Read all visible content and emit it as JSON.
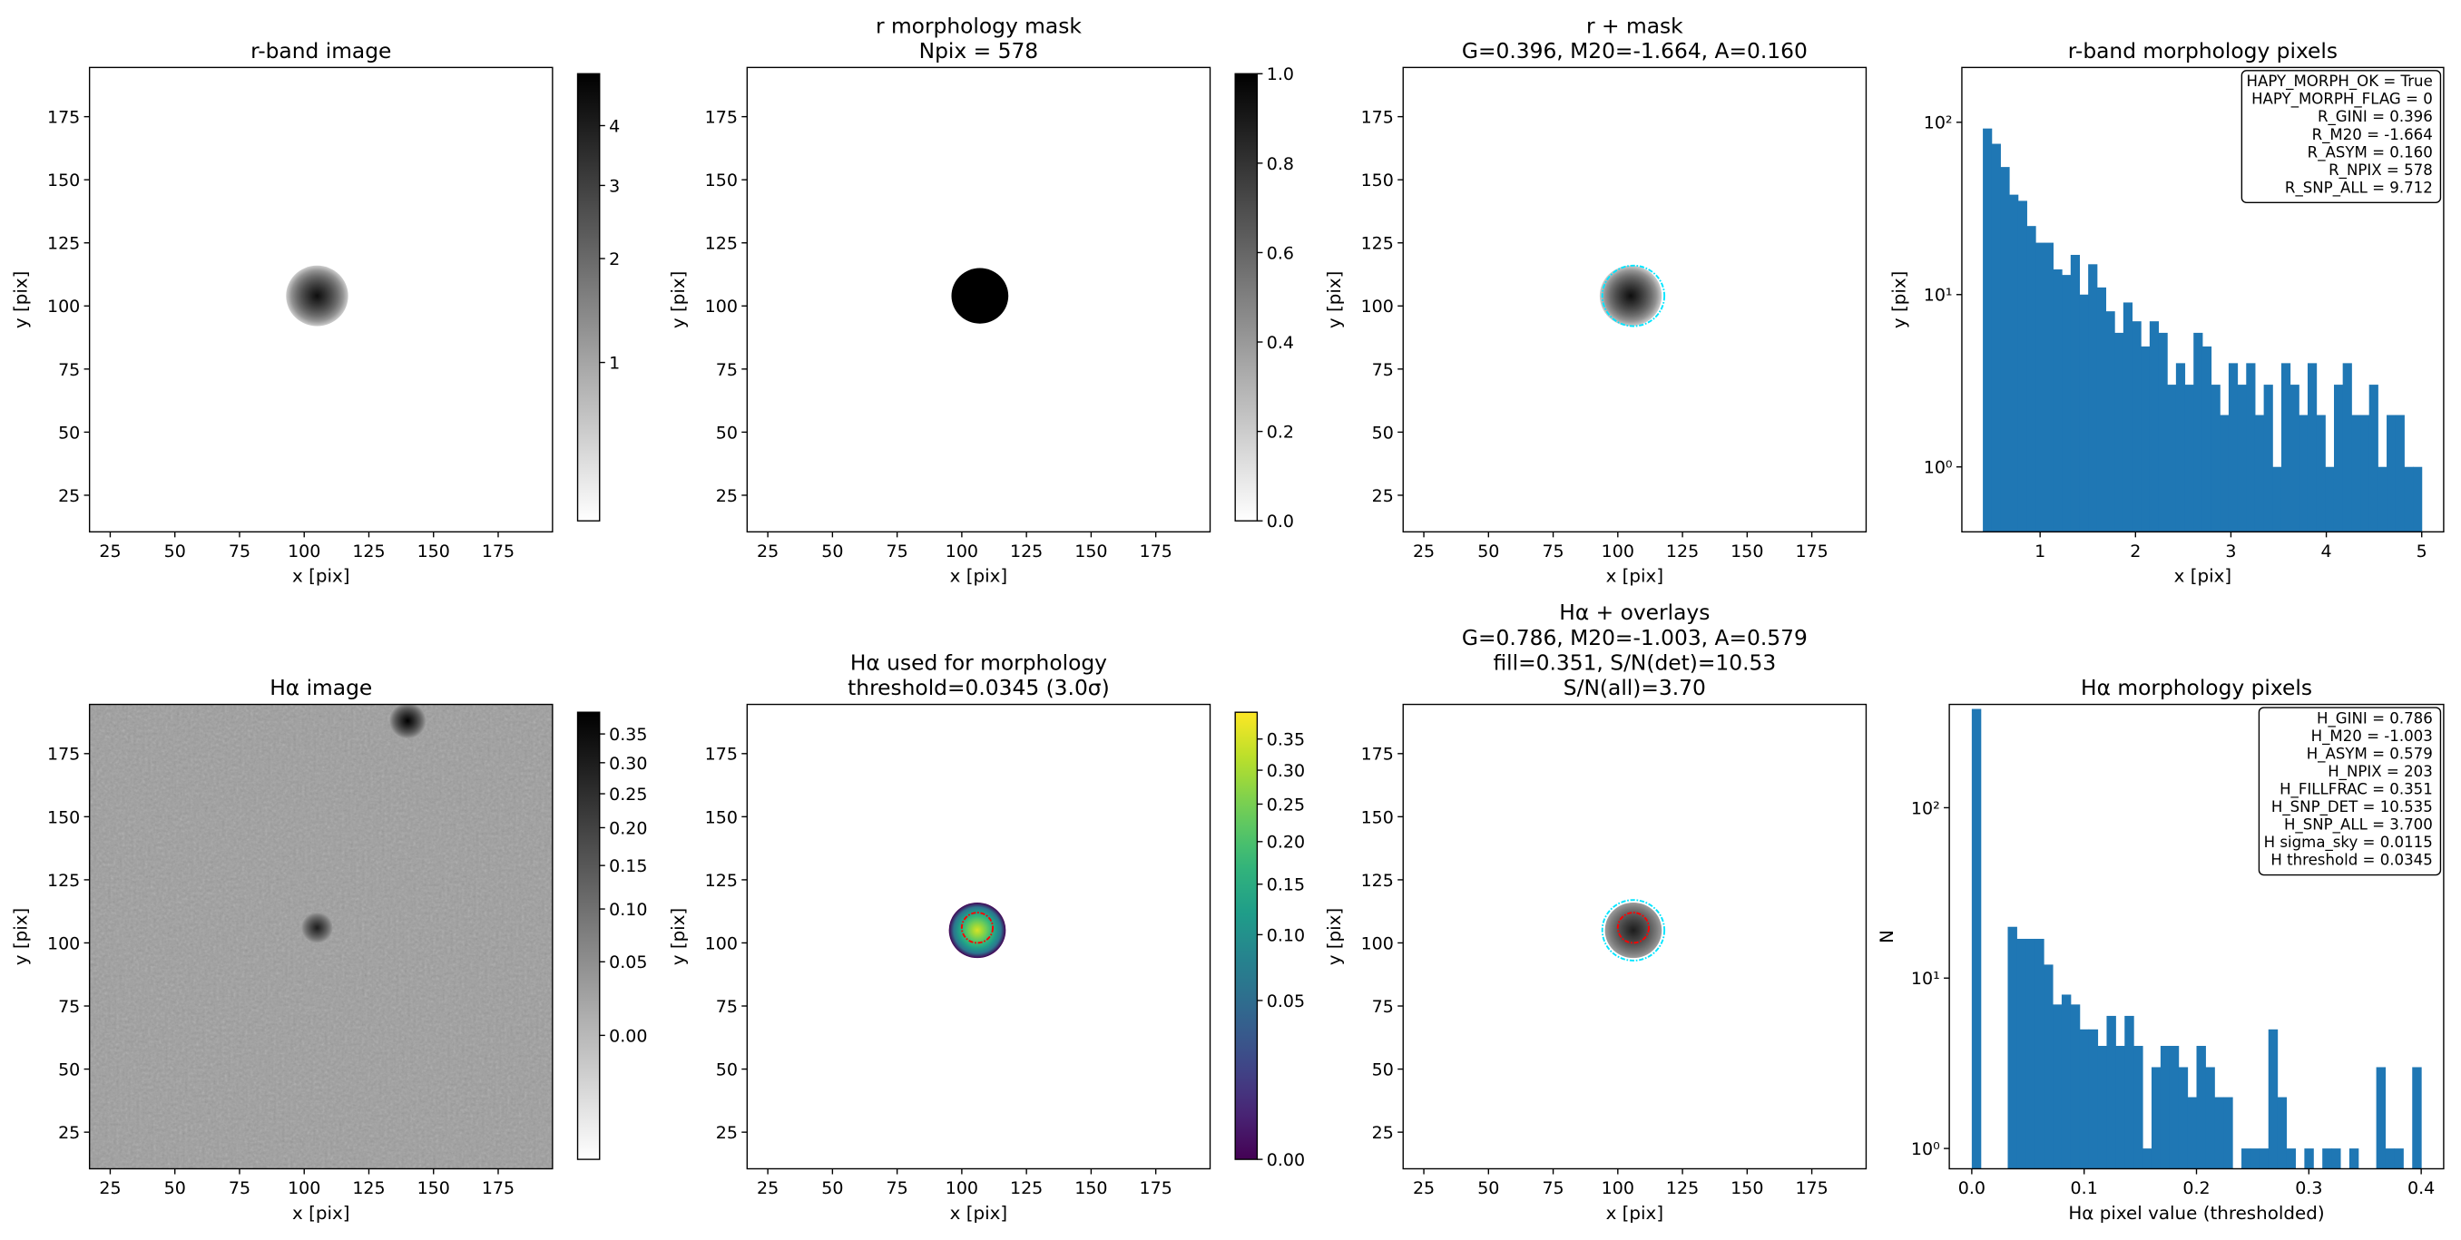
{
  "chart_data": [
    {
      "type": "image",
      "title": [
        "r-band image"
      ],
      "xlabel": "x [pix]",
      "ylabel": "y [pix]",
      "xlim": [
        17,
        196
      ],
      "ylim": [
        10.5,
        194.5
      ],
      "xticks": [
        25,
        50,
        75,
        100,
        125,
        150,
        175
      ],
      "yticks": [
        25,
        50,
        75,
        100,
        125,
        150,
        175
      ],
      "cmap": "gray_r",
      "scale": "sqrt",
      "clim": [
        0.426,
        5.0
      ],
      "colorbar": true,
      "cticks": [
        1,
        2,
        3,
        4
      ],
      "sources": [
        {
          "x": 105,
          "y": 104,
          "r": 12,
          "peak": 4.5,
          "edge": 0.6
        }
      ]
    },
    {
      "type": "image",
      "title": [
        "r morphology mask",
        "Npix = 578"
      ],
      "xlabel": "x [pix]",
      "ylabel": "y [pix]",
      "xlim": [
        17,
        196
      ],
      "ylim": [
        10.5,
        194.5
      ],
      "xticks": [
        25,
        50,
        75,
        100,
        125,
        150,
        175
      ],
      "yticks": [
        25,
        50,
        75,
        100,
        125,
        150,
        175
      ],
      "cmap": "gray_r",
      "scale": "linear",
      "clim": [
        0,
        1
      ],
      "colorbar": true,
      "cticks": [
        {
          "value": 0,
          "label": "0.0"
        },
        {
          "value": 0.2,
          "label": "0.2"
        },
        {
          "value": 0.4,
          "label": "0.4"
        },
        {
          "value": 0.6,
          "label": "0.6"
        },
        {
          "value": 0.8,
          "label": "0.8"
        },
        {
          "value": 1,
          "label": "1.0"
        }
      ],
      "sources": [
        {
          "x": 107,
          "y": 104,
          "r": 11,
          "peak": 1,
          "edge": 1
        }
      ]
    },
    {
      "type": "image",
      "title": [
        "r + mask",
        "G=0.396, M20=-1.664, A=0.160"
      ],
      "xlabel": "x [pix]",
      "ylabel": "y [pix]",
      "xlim": [
        17,
        196
      ],
      "ylim": [
        10.5,
        194.5
      ],
      "xticks": [
        25,
        50,
        75,
        100,
        125,
        150,
        175
      ],
      "yticks": [
        25,
        50,
        75,
        100,
        125,
        150,
        175
      ],
      "cmap": "gray_r",
      "scale": "sqrt",
      "clim": [
        0.426,
        5.0
      ],
      "colorbar": false,
      "sources": [
        {
          "x": 105,
          "y": 104,
          "r": 12,
          "peak": 4.5,
          "edge": 0.6
        }
      ],
      "contours": [
        {
          "color": "#00e5ff",
          "x": 106,
          "y": 104,
          "r": 12
        }
      ]
    },
    {
      "type": "histogram",
      "title": [
        "r-band morphology pixels"
      ],
      "xlabel": "x [pix]",
      "ylabel": "y [pix]",
      "color": "#1f77b4",
      "xlim": [
        0.18,
        5.23
      ],
      "ylim": [
        0.42,
        208
      ],
      "yscale": "log",
      "xticks": [
        1,
        2,
        3,
        4,
        5
      ],
      "yticks": [
        {
          "value": 1,
          "label": "10⁰"
        },
        {
          "value": 10,
          "label": "10¹"
        },
        {
          "value": 100,
          "label": "10²"
        }
      ],
      "bins": [
        0.4,
        0.492,
        0.584,
        0.676,
        0.768,
        0.86,
        0.952,
        1.044,
        1.136,
        1.228,
        1.32,
        1.412,
        1.504,
        1.596,
        1.688,
        1.78,
        1.872,
        1.964,
        2.056,
        2.148,
        2.24,
        2.332,
        2.424,
        2.516,
        2.608,
        2.7,
        2.792,
        2.884,
        2.976,
        3.068,
        3.16,
        3.252,
        3.344,
        3.436,
        3.528,
        3.62,
        3.712,
        3.804,
        3.896,
        3.988,
        4.08,
        4.172,
        4.264,
        4.356,
        4.448,
        4.54,
        4.632,
        4.724,
        4.816,
        4.908,
        5.0
      ],
      "values": [
        92,
        75,
        55,
        38,
        35,
        25,
        20,
        20,
        14,
        13,
        17,
        10,
        15,
        11,
        8,
        6,
        9,
        7,
        5,
        7,
        6,
        3,
        4,
        3,
        6,
        5,
        3,
        2,
        4,
        3,
        4,
        2,
        3,
        1,
        4,
        3,
        2,
        4,
        2,
        1,
        3,
        4,
        2,
        2,
        3,
        1,
        2,
        2,
        1,
        1
      ],
      "annotation": [
        "HAPY_MORPH_OK = True",
        "HAPY_MORPH_FLAG = 0",
        "R_GINI = 0.396",
        "R_M20 = -1.664",
        "R_ASYM = 0.160",
        "R_NPIX = 578",
        "R_SNP_ALL = 9.712"
      ]
    },
    {
      "type": "image",
      "title": [
        "Hα image"
      ],
      "xlabel": "x [pix]",
      "ylabel": "y [pix]",
      "xlim": [
        17,
        196
      ],
      "ylim": [
        10.5,
        194.5
      ],
      "xticks": [
        25,
        50,
        75,
        100,
        125,
        150,
        175
      ],
      "yticks": [
        25,
        50,
        75,
        100,
        125,
        150,
        175
      ],
      "cmap": "gray_r",
      "scale": "sqrt",
      "clim": [
        -0.0325,
        0.39
      ],
      "colorbar": true,
      "background": 0.03,
      "noise": true,
      "cticks": [
        {
          "value": 0,
          "label": "0.00"
        },
        {
          "value": 0.05,
          "label": "0.05"
        },
        {
          "value": 0.1,
          "label": "0.10"
        },
        {
          "value": 0.15,
          "label": "0.15"
        },
        {
          "value": 0.2,
          "label": "0.20"
        },
        {
          "value": 0.25,
          "label": "0.25"
        },
        {
          "value": 0.3,
          "label": "0.30"
        },
        {
          "value": 0.35,
          "label": "0.35"
        }
      ],
      "sources": [
        {
          "x": 105,
          "y": 106,
          "r": 6,
          "peak": 0.3,
          "edge": 0.03
        },
        {
          "x": 140,
          "y": 188,
          "r": 7,
          "peak": 0.39,
          "edge": 0.03
        }
      ]
    },
    {
      "type": "image",
      "title": [
        "Hα used for morphology",
        "threshold=0.0345 (3.0σ)"
      ],
      "xlabel": "x [pix]",
      "ylabel": "y [pix]",
      "xlim": [
        17,
        196
      ],
      "ylim": [
        10.5,
        194.5
      ],
      "xticks": [
        25,
        50,
        75,
        100,
        125,
        150,
        175
      ],
      "yticks": [
        25,
        50,
        75,
        100,
        125,
        150,
        175
      ],
      "cmap": "viridis",
      "scale": "sqrt",
      "clim": [
        0,
        0.396
      ],
      "colorbar": true,
      "cticks": [
        {
          "value": 0,
          "label": "0.00"
        },
        {
          "value": 0.05,
          "label": "0.05"
        },
        {
          "value": 0.1,
          "label": "0.10"
        },
        {
          "value": 0.15,
          "label": "0.15"
        },
        {
          "value": 0.2,
          "label": "0.20"
        },
        {
          "value": 0.25,
          "label": "0.25"
        },
        {
          "value": 0.3,
          "label": "0.30"
        },
        {
          "value": 0.35,
          "label": "0.35"
        }
      ],
      "sources": [
        {
          "x": 106,
          "y": 105,
          "r": 11,
          "peak": 0.35,
          "edge": 0.0
        }
      ],
      "contours": [
        {
          "color": "#ff0000",
          "x": 106,
          "y": 106,
          "r": 6
        }
      ]
    },
    {
      "type": "image",
      "title": [
        "Hα + overlays",
        "G=0.786, M20=-1.003, A=0.579",
        "fill=0.351, S/N(det)=10.53",
        "S/N(all)=3.70"
      ],
      "xlabel": "x [pix]",
      "ylabel": "y [pix]",
      "xlim": [
        17,
        196
      ],
      "ylim": [
        10.5,
        194.5
      ],
      "xticks": [
        25,
        50,
        75,
        100,
        125,
        150,
        175
      ],
      "yticks": [
        25,
        50,
        75,
        100,
        125,
        150,
        175
      ],
      "cmap": "gray_r",
      "scale": "sqrt",
      "clim": [
        -0.0325,
        0.39
      ],
      "colorbar": false,
      "sources": [
        {
          "x": 106,
          "y": 105,
          "r": 11,
          "peak": 0.3,
          "edge": 0.03
        }
      ],
      "contours": [
        {
          "color": "#00e5ff",
          "x": 106,
          "y": 105,
          "r": 12
        },
        {
          "color": "#ff0000",
          "x": 106,
          "y": 106,
          "r": 6
        }
      ]
    },
    {
      "type": "histogram",
      "title": [
        "Hα morphology pixels"
      ],
      "xlabel": "Hα pixel value (thresholded)",
      "ylabel": "N",
      "color": "#1f77b4",
      "xlim": [
        -0.02,
        0.42
      ],
      "ylim": [
        0.76,
        404
      ],
      "yscale": "log",
      "xticks": [
        {
          "value": 0,
          "label": "0.0"
        },
        {
          "value": 0.1,
          "label": "0.1"
        },
        {
          "value": 0.2,
          "label": "0.2"
        },
        {
          "value": 0.3,
          "label": "0.3"
        },
        {
          "value": 0.4,
          "label": "0.4"
        }
      ],
      "yticks": [
        {
          "value": 1,
          "label": "10⁰"
        },
        {
          "value": 10,
          "label": "10¹"
        },
        {
          "value": 100,
          "label": "10²"
        }
      ],
      "bins": [
        0,
        0.008,
        0.016,
        0.024,
        0.032,
        0.04,
        0.048,
        0.056,
        0.064,
        0.072,
        0.08,
        0.088,
        0.096,
        0.104,
        0.112,
        0.12,
        0.128,
        0.136,
        0.144,
        0.152,
        0.16,
        0.168,
        0.176,
        0.184,
        0.192,
        0.2,
        0.208,
        0.216,
        0.224,
        0.232,
        0.24,
        0.248,
        0.256,
        0.264,
        0.272,
        0.28,
        0.288,
        0.296,
        0.304,
        0.312,
        0.32,
        0.328,
        0.336,
        0.344,
        0.352,
        0.36,
        0.368,
        0.376,
        0.384,
        0.392,
        0.4
      ],
      "values": [
        380,
        0,
        0,
        0,
        20,
        17,
        17,
        17,
        12,
        7,
        8,
        7,
        5,
        5,
        4,
        6,
        4,
        6,
        4,
        1,
        3,
        4,
        4,
        3,
        2,
        4,
        3,
        2,
        2,
        0,
        1,
        1,
        1,
        5,
        2,
        1,
        0,
        1,
        0,
        1,
        1,
        0,
        1,
        0,
        0,
        3,
        1,
        1,
        0,
        3
      ],
      "annotation": [
        "H_GINI = 0.786",
        "H_M20 = -1.003",
        "H_ASYM = 0.579",
        "H_NPIX = 203",
        "H_FILLFRAC = 0.351",
        "H_SNP_DET = 10.535",
        "H_SNP_ALL = 3.700",
        "H sigma_sky = 0.0115",
        "H threshold = 0.0345"
      ]
    }
  ]
}
